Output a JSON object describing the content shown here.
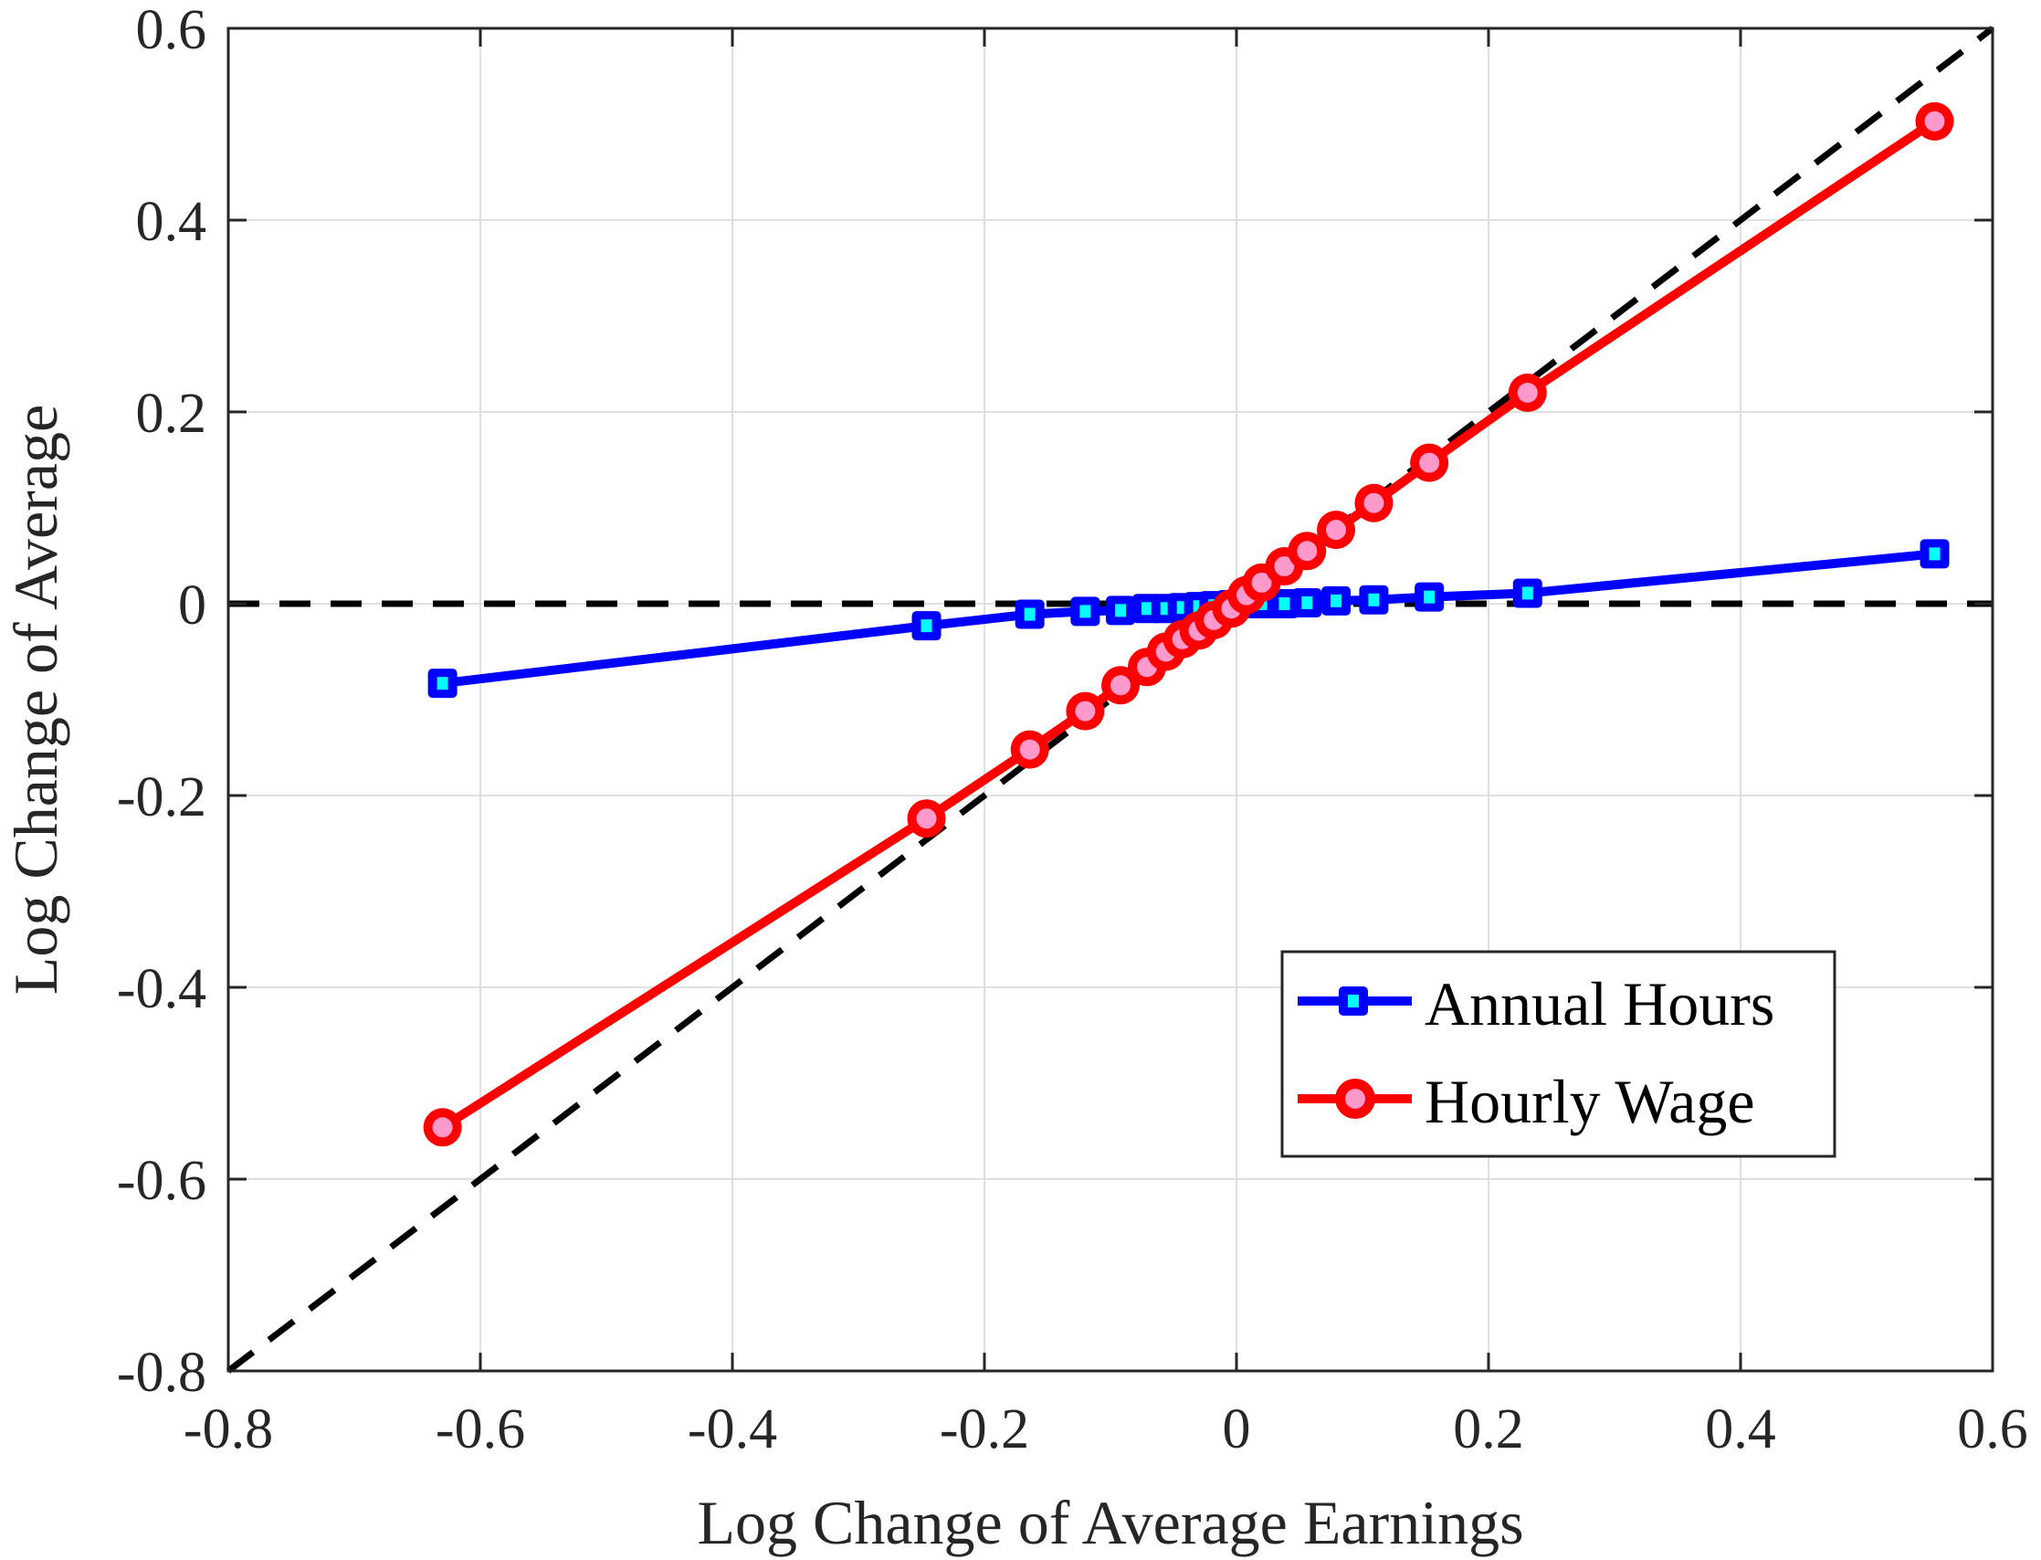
{
  "chart_data": {
    "type": "line",
    "title": "",
    "xlabel": "Log Change of Average Earnings",
    "ylabel": "Log Change of Average",
    "xlim": [
      -0.8,
      0.6
    ],
    "ylim": [
      -0.8,
      0.6
    ],
    "xticks": [
      -0.8,
      -0.6,
      -0.4,
      -0.2,
      0,
      0.2,
      0.4,
      0.6
    ],
    "yticks": [
      -0.8,
      -0.6,
      -0.4,
      -0.2,
      0,
      0.2,
      0.4,
      0.6
    ],
    "xtick_labels": [
      "-0.8",
      "-0.6",
      "-0.4",
      "-0.2",
      "0",
      "0.2",
      "0.4",
      "0.6"
    ],
    "ytick_labels": [
      "-0.8",
      "-0.6",
      "-0.4",
      "-0.2",
      "0",
      "0.2",
      "0.4",
      "0.6"
    ],
    "grid": true,
    "legend_position": "lower right (inside)",
    "x": [
      -0.63,
      -0.246,
      -0.164,
      -0.12,
      -0.092,
      -0.071,
      -0.056,
      -0.043,
      -0.03,
      -0.018,
      -0.004,
      0.008,
      0.02,
      0.038,
      0.056,
      0.079,
      0.109,
      0.153,
      0.231,
      0.554
    ],
    "series": [
      {
        "name": "Annual Hours",
        "color": "#0000FF",
        "marker": "square",
        "marker_face": "#00FFFF",
        "values": [
          -0.083,
          -0.023,
          -0.011,
          -0.008,
          -0.007,
          -0.005,
          -0.005,
          -0.004,
          -0.003,
          -0.002,
          -0.001,
          0.0,
          0.0,
          0.0,
          0.001,
          0.003,
          0.004,
          0.007,
          0.011,
          0.052
        ]
      },
      {
        "name": "Hourly Wage",
        "color": "#FF0000",
        "marker": "circle",
        "marker_face": "#FF99CC",
        "values": [
          -0.546,
          -0.224,
          -0.152,
          -0.112,
          -0.085,
          -0.066,
          -0.05,
          -0.037,
          -0.028,
          -0.017,
          -0.005,
          0.009,
          0.022,
          0.039,
          0.055,
          0.077,
          0.105,
          0.147,
          0.22,
          0.503
        ]
      }
    ],
    "reference_lines": [
      {
        "name": "45-degree line",
        "type": "dashed",
        "color": "#000000",
        "from": [
          -0.8,
          -0.8
        ],
        "to": [
          0.6,
          0.6
        ]
      },
      {
        "name": "zero line",
        "type": "dashed",
        "color": "#000000",
        "from": [
          -0.8,
          0
        ],
        "to": [
          0.6,
          0
        ]
      }
    ]
  },
  "legend": {
    "items": [
      {
        "label": "Annual Hours"
      },
      {
        "label": "Hourly Wage"
      }
    ]
  },
  "colors": {
    "axis": "#262626",
    "grid": "#E0E0E0",
    "hours_line": "#0000FF",
    "hours_marker_fill": "#00FFFF",
    "wage_line": "#FF0000",
    "wage_marker_fill": "#FF99CC"
  }
}
